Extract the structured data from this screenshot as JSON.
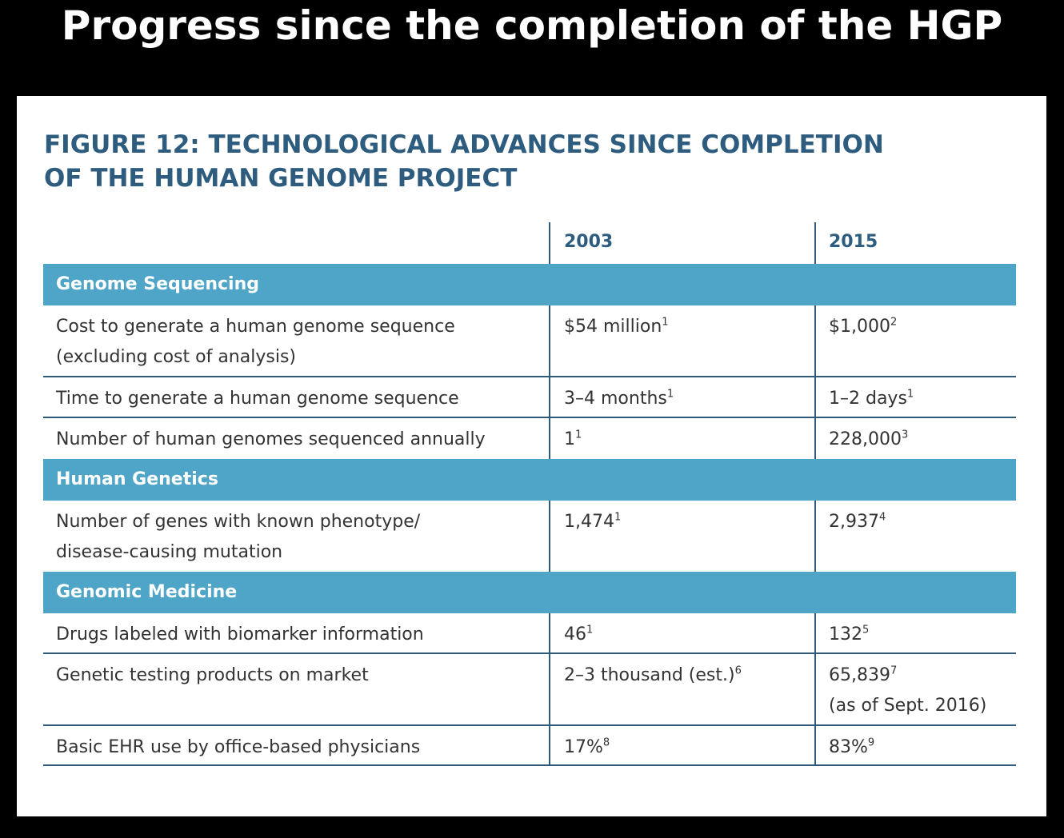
{
  "slide": {
    "title": "Progress since the completion of the HGP"
  },
  "figure": {
    "title_line1": "FIGURE 12: TECHNOLOGICAL ADVANCES SINCE COMPLETION",
    "title_line2": "OF THE HUMAN GENOME PROJECT"
  },
  "table": {
    "col_2003": "2003",
    "col_2015": "2015",
    "sections": [
      {
        "label": "Genome Sequencing",
        "rows": [
          {
            "label_line1": "Cost to generate a human genome sequence",
            "label_line2": "(excluding cost of analysis)",
            "v2003": "$54 million",
            "v2003_ref": "1",
            "v2015": "$1,000",
            "v2015_ref": "2"
          },
          {
            "label_line1": "Time to generate a human genome sequence",
            "v2003": "3–4 months",
            "v2003_ref": "1",
            "v2015": "1–2 days",
            "v2015_ref": "1"
          },
          {
            "label_line1": "Number of human genomes sequenced annually",
            "v2003": "1",
            "v2003_ref": "1",
            "v2015": "228,000",
            "v2015_ref": "3"
          }
        ]
      },
      {
        "label": "Human Genetics",
        "rows": [
          {
            "label_line1": "Number of genes with known phenotype/",
            "label_line2": "disease-causing mutation",
            "v2003": "1,474",
            "v2003_ref": "1",
            "v2015": "2,937",
            "v2015_ref": "4"
          }
        ]
      },
      {
        "label": "Genomic Medicine",
        "rows": [
          {
            "label_line1": "Drugs labeled with biomarker information",
            "v2003": "46",
            "v2003_ref": "1",
            "v2015": "132",
            "v2015_ref": "5"
          },
          {
            "label_line1": "Genetic testing products on market",
            "v2003": "2–3 thousand (est.)",
            "v2003_ref": "6",
            "v2015": "65,839",
            "v2015_ref": "7",
            "v2015_line2": "(as of Sept. 2016)"
          },
          {
            "label_line1": "Basic EHR use by office-based physicians",
            "v2003": "17%",
            "v2003_ref": "8",
            "v2015": "83%",
            "v2015_ref": "9"
          }
        ]
      }
    ]
  },
  "colors": {
    "background": "#000000",
    "panel": "#ffffff",
    "title_text": "#2d5c7f",
    "section_band": "#4ea5c7",
    "rule": "#2f5a7a",
    "body_text": "#333333"
  }
}
